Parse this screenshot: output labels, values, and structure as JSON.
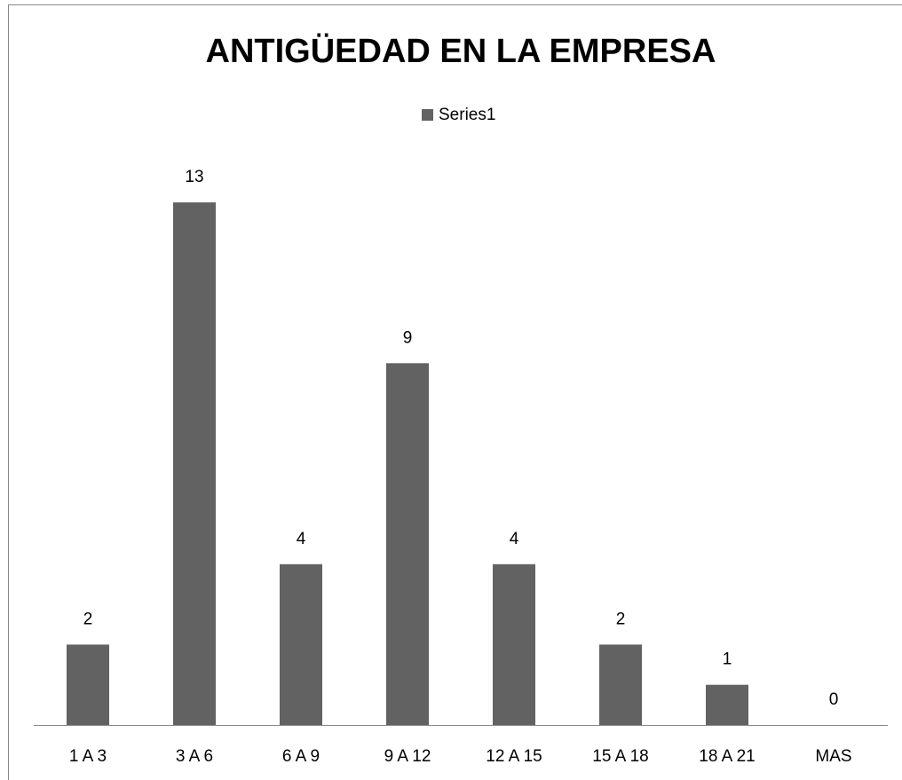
{
  "chart_data": {
    "type": "bar",
    "title": "ANTIGÜEDAD EN LA EMPRESA",
    "categories": [
      "1 A 3",
      "3 A 6",
      "6 A 9",
      "9 A 12",
      "12 A 15",
      "15 A 18",
      "18 A 21",
      "MAS"
    ],
    "series": [
      {
        "name": "Series1",
        "color": "#626262",
        "values": [
          2,
          13,
          4,
          9,
          4,
          2,
          1,
          0
        ]
      }
    ],
    "legend": "top"
  }
}
